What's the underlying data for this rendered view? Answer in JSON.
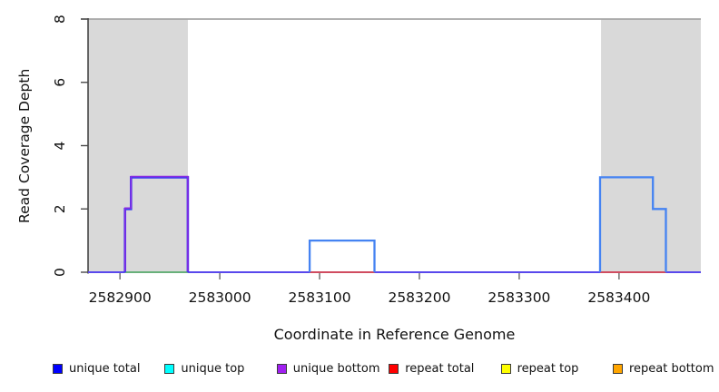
{
  "chart_data": {
    "type": "line",
    "subtype": "step-coverage",
    "title": "",
    "xlabel": "Coordinate in Reference Genome",
    "ylabel": "Read Coverage Depth",
    "xlim": [
      2582868,
      2583482
    ],
    "ylim": [
      0,
      8
    ],
    "xticks": [
      2582900,
      2583000,
      2583100,
      2583200,
      2583300,
      2583400
    ],
    "yticks": [
      0,
      2,
      4,
      6,
      8
    ],
    "grid": false,
    "background_color": "#ffffff",
    "shaded_region_color": "#d9d9d9",
    "shaded_regions": [
      {
        "x0": 2582868,
        "x1": 2582968
      },
      {
        "x0": 2583382,
        "x1": 2583482
      }
    ],
    "top_reference_line": {
      "y": 8,
      "color": "#a6a6a6"
    },
    "series": [
      {
        "name": "unique total",
        "color": "#0000ff",
        "steps": [
          [
            2582868,
            0
          ],
          [
            2582905,
            2
          ],
          [
            2582911,
            3
          ],
          [
            2582968,
            0
          ],
          [
            2583090,
            1
          ],
          [
            2583155,
            0
          ],
          [
            2583381,
            3
          ],
          [
            2583434,
            2
          ],
          [
            2583447,
            0
          ],
          [
            2583482,
            0
          ]
        ]
      },
      {
        "name": "unique top",
        "color": "#00ffff",
        "steps": [
          [
            2582868,
            0
          ],
          [
            2583482,
            0
          ]
        ]
      },
      {
        "name": "unique bottom",
        "color": "#a020f0",
        "steps": [
          [
            2582868,
            0
          ],
          [
            2582905,
            2
          ],
          [
            2582911,
            3
          ],
          [
            2582968,
            0
          ],
          [
            2583482,
            0
          ]
        ]
      },
      {
        "name": "repeat total",
        "color": "#ff0000",
        "steps": [
          [
            2582868,
            0
          ],
          [
            2583482,
            0
          ]
        ]
      },
      {
        "name": "repeat top",
        "color": "#ffff00",
        "steps": [
          [
            2582868,
            0
          ],
          [
            2583482,
            0
          ]
        ]
      },
      {
        "name": "repeat bottom",
        "color": "#ffa500",
        "steps": [
          [
            2582868,
            0
          ],
          [
            2583482,
            0
          ]
        ]
      }
    ],
    "render_layers": [
      {
        "name": "baseline-indigo",
        "color": "#5948ec",
        "width": 2.0,
        "points": [
          [
            2582868,
            0
          ],
          [
            2583482,
            0
          ]
        ]
      },
      {
        "name": "zero-line-green-left",
        "color": "#6abf6a",
        "width": 1.7,
        "points": [
          [
            2582905,
            0
          ],
          [
            2582968,
            0
          ]
        ]
      },
      {
        "name": "zero-line-red-mid",
        "color": "#e24c4c",
        "width": 1.7,
        "points": [
          [
            2583090,
            0
          ],
          [
            2583155,
            0
          ]
        ]
      },
      {
        "name": "zero-line-red-right",
        "color": "#e24c4c",
        "width": 1.7,
        "points": [
          [
            2583381,
            0
          ],
          [
            2583447,
            0
          ]
        ]
      },
      {
        "name": "unique-hump-left-blue",
        "color": "#3c3cf0",
        "width": 2.6,
        "points": [
          [
            2582905,
            0
          ],
          [
            2582905,
            2
          ],
          [
            2582911,
            2
          ],
          [
            2582911,
            3
          ],
          [
            2582968,
            3
          ],
          [
            2582968,
            0
          ]
        ]
      },
      {
        "name": "unique-hump-left-purple",
        "color": "#8a2be2",
        "width": 1.5,
        "dy": -0.9,
        "points": [
          [
            2582905,
            0
          ],
          [
            2582905,
            2
          ],
          [
            2582911,
            2
          ],
          [
            2582911,
            3
          ],
          [
            2582968,
            3
          ],
          [
            2582968,
            0
          ]
        ]
      },
      {
        "name": "unique-bump-mid-blue",
        "color": "#4583f2",
        "width": 2.3,
        "points": [
          [
            2583090,
            0
          ],
          [
            2583090,
            1
          ],
          [
            2583155,
            1
          ],
          [
            2583155,
            0
          ]
        ]
      },
      {
        "name": "unique-step-right-blue",
        "color": "#4583f2",
        "width": 2.3,
        "points": [
          [
            2583381,
            0
          ],
          [
            2583381,
            3
          ],
          [
            2583434,
            3
          ],
          [
            2583434,
            2
          ],
          [
            2583447,
            2
          ],
          [
            2583447,
            0
          ]
        ]
      }
    ],
    "legend": {
      "position": "bottom",
      "entries": [
        {
          "label": "unique total",
          "color": "#0000ff"
        },
        {
          "label": "unique top",
          "color": "#00ffff"
        },
        {
          "label": "unique bottom",
          "color": "#a020f0"
        },
        {
          "label": "repeat total",
          "color": "#ff0000"
        },
        {
          "label": "repeat top",
          "color": "#ffff00"
        },
        {
          "label": "repeat bottom",
          "color": "#ffa500"
        }
      ]
    }
  }
}
